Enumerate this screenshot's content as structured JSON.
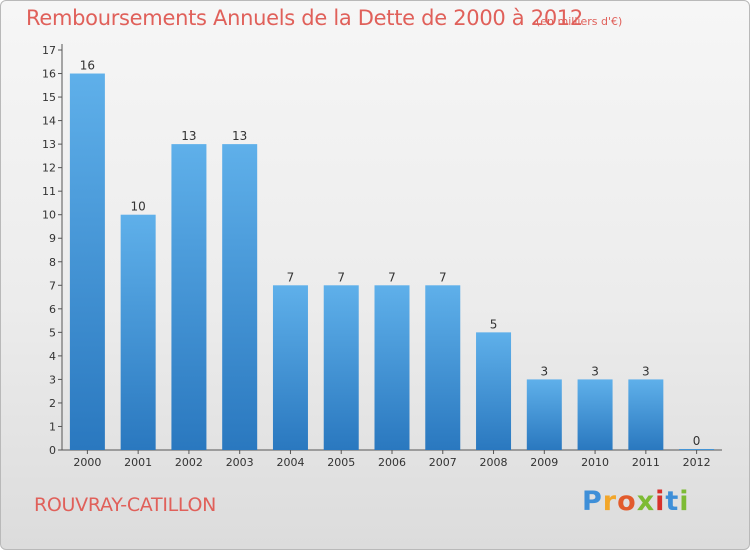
{
  "header": {
    "title": "Remboursements Annuels de la Dette de 2000 à 2012",
    "unit": "(en milliers d'€)"
  },
  "footer": {
    "commune": "ROUVRAY-CATILLON",
    "brand_letters": [
      "P",
      "r",
      "o",
      "x",
      "i",
      "t",
      "i"
    ]
  },
  "colors": {
    "title": "#e0605a",
    "bar_top": "#5fb0ea",
    "bar_bottom": "#2a78bf",
    "axis": "#555555"
  },
  "chart_data": {
    "type": "bar",
    "categories": [
      "2000",
      "2001",
      "2002",
      "2003",
      "2004",
      "2005",
      "2006",
      "2007",
      "2008",
      "2009",
      "2010",
      "2011",
      "2012"
    ],
    "values": [
      16,
      10,
      13,
      13,
      7,
      7,
      7,
      7,
      5,
      3,
      3,
      3,
      0
    ],
    "data_labels": [
      "16",
      "10",
      "13",
      "13",
      "7",
      "7",
      "7",
      "7",
      "5",
      "3",
      "3",
      "3",
      "0"
    ],
    "title": "Remboursements Annuels de la Dette de 2000 à 2012",
    "xlabel": "",
    "ylabel": "",
    "ylim": [
      0,
      17
    ],
    "yticks": [
      "0",
      "1",
      "2",
      "3",
      "4",
      "5",
      "6",
      "7",
      "8",
      "9",
      "10",
      "11",
      "12",
      "13",
      "14",
      "15",
      "16",
      "17"
    ],
    "grid": false,
    "legend": "none"
  }
}
